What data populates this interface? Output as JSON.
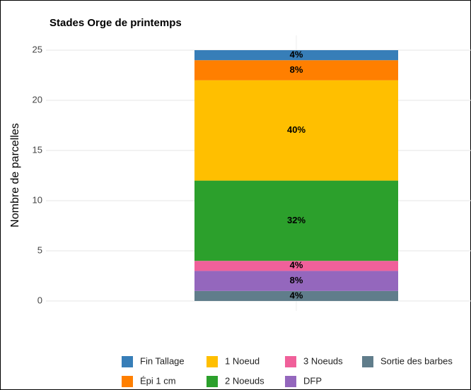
{
  "chart_data": {
    "type": "stacked_bar",
    "title": "Stades Orge de printemps",
    "ylabel": "Nombre de parcelles",
    "categories": [
      null
    ],
    "series": [
      {
        "name": "Fin Tallage",
        "color": "#377eb8",
        "values": [
          1
        ],
        "value_labels": [
          "4%"
        ]
      },
      {
        "name": "Épi 1 cm",
        "color": "#ff7f00",
        "values": [
          2
        ],
        "value_labels": [
          "8%"
        ]
      },
      {
        "name": "1 Noeud",
        "color": "#ffbf00",
        "values": [
          10
        ],
        "value_labels": [
          "40%"
        ]
      },
      {
        "name": "2 Noeuds",
        "color": "#2ca02c",
        "values": [
          8
        ],
        "value_labels": [
          "32%"
        ]
      },
      {
        "name": "3 Noeuds",
        "color": "#f0609a",
        "values": [
          1
        ],
        "value_labels": [
          "4%"
        ]
      },
      {
        "name": "DFP",
        "color": "#9467bd",
        "values": [
          2
        ],
        "value_labels": [
          "8%"
        ]
      },
      {
        "name": "Sortie des barbes",
        "color": "#607d8b",
        "values": [
          1
        ],
        "value_labels": [
          "4%"
        ]
      }
    ],
    "ylim": [
      0,
      25
    ],
    "yticks": [
      0,
      5,
      10,
      15,
      20,
      25
    ],
    "grid": true,
    "legend": "bottom"
  }
}
